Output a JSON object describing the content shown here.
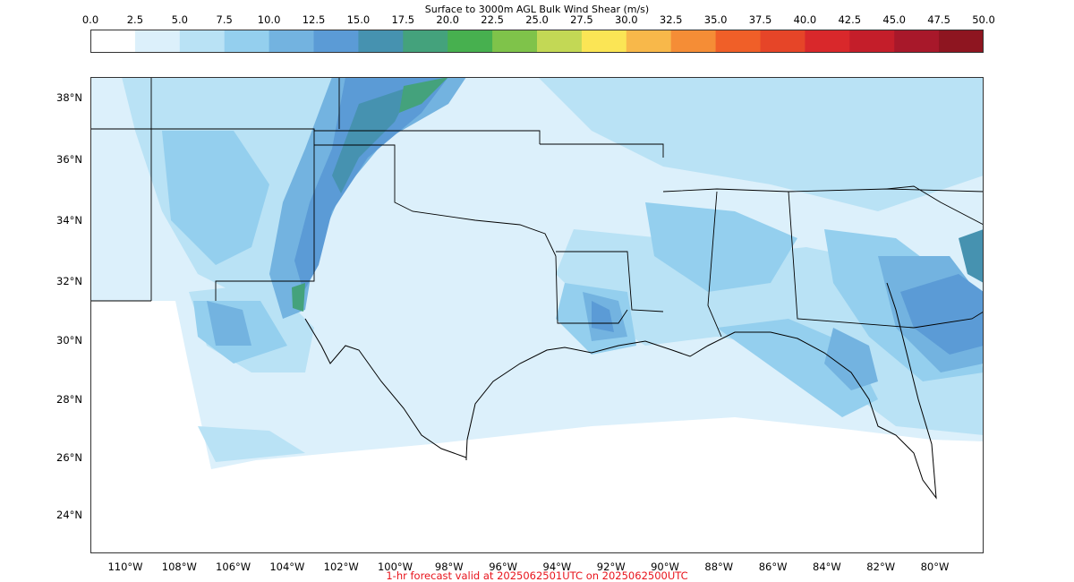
{
  "title": "Surface to 3000m AGL Bulk Wind Shear (m/s)",
  "colorbar": {
    "ticks": [
      "0.0",
      "2.5",
      "5.0",
      "7.5",
      "10.0",
      "12.5",
      "15.0",
      "17.5",
      "20.0",
      "22.5",
      "25.0",
      "27.5",
      "30.0",
      "32.5",
      "35.0",
      "37.5",
      "40.0",
      "42.5",
      "45.0",
      "47.5",
      "50.0"
    ],
    "colors": [
      "#ffffff",
      "#dcf0fb",
      "#b9e2f5",
      "#94cfee",
      "#73b3e0",
      "#5b9bd6",
      "#4692b0",
      "#44a27c",
      "#47b04f",
      "#7fc34a",
      "#c3d855",
      "#fbe555",
      "#f8b84a",
      "#f58d36",
      "#f05f28",
      "#e64528",
      "#d9282b",
      "#c41e2a",
      "#a8182a",
      "#8e1520"
    ]
  },
  "axes": {
    "lat_labels": [
      "38°N",
      "36°N",
      "34°N",
      "32°N",
      "30°N",
      "28°N",
      "26°N",
      "24°N"
    ],
    "lon_labels": [
      "110°W",
      "108°W",
      "106°W",
      "104°W",
      "102°W",
      "100°W",
      "98°W",
      "96°W",
      "94°W",
      "92°W",
      "90°W",
      "88°W",
      "86°W",
      "84°W",
      "82°W",
      "80°W"
    ]
  },
  "valid_text": "1-hr forecast valid at 2025062501UTC on 2025062500UTC"
}
